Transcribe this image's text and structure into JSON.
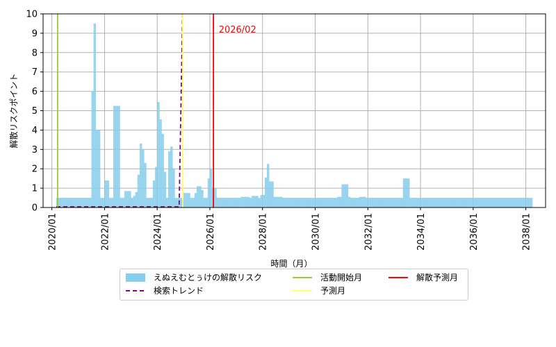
{
  "chart_data": {
    "type": "bar",
    "title": "",
    "xlabel": "時間（月）",
    "ylabel": "解散リスクポイント",
    "ylim": [
      0,
      10
    ],
    "yticks": [
      "0",
      "1",
      "2",
      "3",
      "4",
      "5",
      "6",
      "7",
      "8",
      "9",
      "10"
    ],
    "xlim": [
      "2019-09",
      "2038-10"
    ],
    "xticks": [
      "2020/01",
      "2022/01",
      "2024/01",
      "2026/01",
      "2028/01",
      "2030/01",
      "2032/01",
      "2034/01",
      "2036/01",
      "2038/01"
    ],
    "grid": true,
    "legend_placement": "below-center",
    "colors": {
      "bars": "#87ceeb",
      "trend": "#800080",
      "start_line": "#9acd32",
      "forecast_line": "#ffff66",
      "dissolution_line": "#ff0000",
      "grid": "#b0b0b0"
    },
    "series": [
      {
        "name": "えぬえむとぅけの解散リスク",
        "kind": "bar",
        "start_month": "2020-03",
        "values": [
          0.5,
          0.5,
          0.5,
          0.5,
          0.5,
          0.5,
          0.5,
          0.5,
          0.5,
          0.5,
          0.5,
          0.5,
          0.5,
          0.5,
          0.5,
          0.5,
          6.0,
          9.5,
          4.0,
          4.0,
          0.5,
          0.5,
          1.4,
          1.4,
          0.5,
          0.5,
          5.25,
          5.25,
          5.25,
          0.5,
          0.5,
          0.85,
          0.85,
          0.85,
          0.5,
          0.6,
          0.8,
          1.7,
          3.3,
          3.0,
          2.3,
          0.5,
          0.5,
          0.5,
          1.4,
          2.1,
          5.45,
          4.55,
          3.8,
          1.85,
          0.5,
          2.9,
          3.15,
          2.0,
          0.5,
          0.5,
          0.5,
          0.5,
          0.75,
          0.75,
          0.75,
          0.5,
          0.5,
          0.75,
          1.1,
          1.1,
          0.9,
          0.5,
          0.5,
          1.5,
          2.0,
          1.0,
          1.0,
          0.5,
          0.5,
          0.5,
          0.5,
          0.5,
          0.5,
          0.5,
          0.5,
          0.5,
          0.5,
          0.5,
          0.55,
          0.55,
          0.55,
          0.55,
          0.5,
          0.6,
          0.6,
          0.6,
          0.5,
          0.65,
          0.65,
          1.55,
          2.25,
          1.35,
          1.35,
          0.55,
          0.55,
          0.55,
          0.55,
          0.5,
          0.5,
          0.5,
          0.5,
          0.5,
          0.5,
          0.5,
          0.5,
          0.5,
          0.5,
          0.5,
          0.5,
          0.5,
          0.5,
          0.5,
          0.5,
          0.5,
          0.5,
          0.5,
          0.5,
          0.5,
          0.5,
          0.5,
          0.5,
          0.5,
          0.55,
          0.55,
          1.2,
          1.2,
          1.2,
          0.55,
          0.5,
          0.5,
          0.5,
          0.5,
          0.55,
          0.55,
          0.55,
          0.5,
          0.5,
          0.5,
          0.5,
          0.5,
          0.5,
          0.5,
          0.5,
          0.5,
          0.5,
          0.5,
          0.5,
          0.5,
          0.5,
          0.5,
          0.5,
          0.5,
          1.5,
          1.5,
          1.5,
          0.5,
          0.5,
          0.5,
          0.5,
          0.5,
          0.5,
          0.5,
          0.5,
          0.5,
          0.5,
          0.5,
          0.5,
          0.5,
          0.5,
          0.5,
          0.5,
          0.5,
          0.5,
          0.5,
          0.5,
          0.5,
          0.5,
          0.5,
          0.5,
          0.5,
          0.5,
          0.5,
          0.5,
          0.5,
          0.5,
          0.5,
          0.5,
          0.5,
          0.5,
          0.5,
          0.5,
          0.5,
          0.5,
          0.5,
          0.5,
          0.5,
          0.5,
          0.5,
          0.5,
          0.5,
          0.5,
          0.5,
          0.5,
          0.5,
          0.5,
          0.5,
          0.5,
          0.5,
          0.5,
          0.5,
          0.5
        ]
      },
      {
        "name": "検索トレンド",
        "kind": "dashed-line",
        "points": [
          [
            "2020-03",
            0
          ],
          [
            "2024-12",
            0
          ]
        ]
      },
      {
        "name": "活動開始月",
        "kind": "vline",
        "x": "2020-03"
      },
      {
        "name": "予測月",
        "kind": "vline",
        "x": "2024-12"
      },
      {
        "name": "解散予測月",
        "kind": "vline",
        "x": "2026-02"
      }
    ],
    "trend_vertical_x": "2024-11",
    "annotations": [
      {
        "text": "2026/02",
        "x": "2026-06",
        "y": 9.0,
        "color": "#ff0000"
      }
    ]
  },
  "legend": {
    "items": [
      {
        "label": "えぬえむとぅけの解散リスク",
        "style": "patch",
        "color": "#87ceeb"
      },
      {
        "label": "検索トレンド",
        "style": "dashed",
        "color": "#800080"
      },
      {
        "label": "活動開始月",
        "style": "line",
        "color": "#9acd32"
      },
      {
        "label": "予測月",
        "style": "line",
        "color": "#ffff66"
      },
      {
        "label": "解散予測月",
        "style": "line",
        "color": "#ff0000"
      }
    ]
  }
}
